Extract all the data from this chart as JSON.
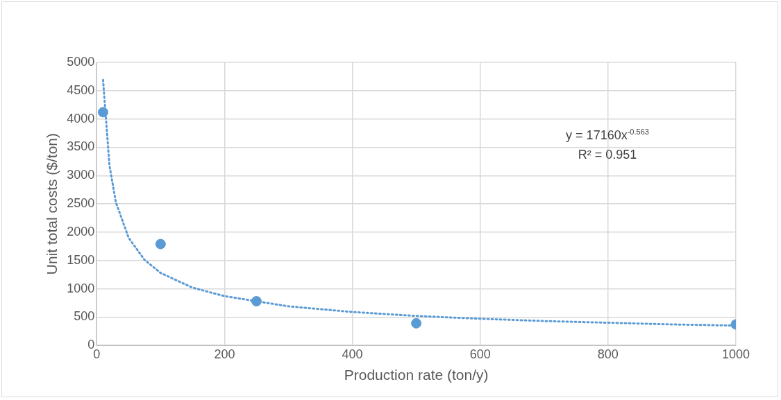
{
  "chart_data": {
    "type": "scatter",
    "xlabel": "Production rate (ton/y)",
    "ylabel": "Unit total costs ($/ton)",
    "xlim": [
      0,
      1000
    ],
    "xticks": [
      0,
      200,
      400,
      600,
      800,
      1000
    ],
    "ylim": [
      0,
      5000
    ],
    "yticks": [
      0,
      500,
      1000,
      1500,
      2000,
      2500,
      3000,
      3500,
      4000,
      4500,
      5000
    ],
    "grid": true,
    "legend": false,
    "marker": "circle",
    "series": [
      {
        "color": "#5b9bd5",
        "x": [
          10,
          100,
          250,
          500,
          1000
        ],
        "values": [
          4120,
          1790,
          780,
          390,
          370
        ]
      },
      {
        "type": "line",
        "color": "#5b9bd5",
        "line_style": "dotted",
        "marker": "none",
        "x": [
          10,
          20,
          30,
          50,
          75,
          100,
          150,
          200,
          300,
          400,
          500,
          600,
          700,
          800,
          900,
          1000
        ],
        "values": [
          4690,
          3180,
          2530,
          1900,
          1510,
          1280,
          1020,
          870,
          690,
          590,
          520,
          470,
          430,
          400,
          370,
          350
        ]
      }
    ],
    "annotations": [
      "y = 17160x$^{-0.563}$",
      "R² = 0.951"
    ]
  }
}
